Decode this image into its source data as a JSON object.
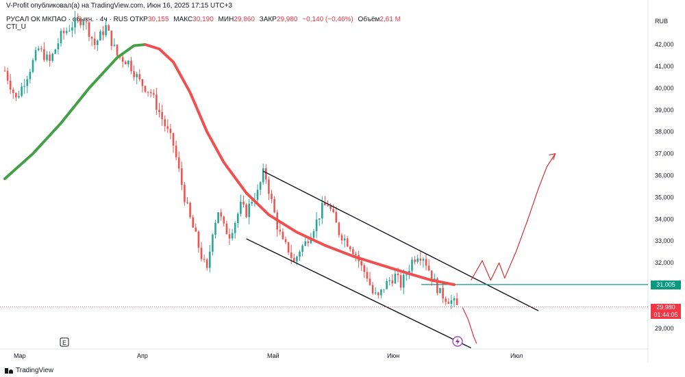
{
  "header": {
    "publisher_line": "V-Profit опубликовал(а) на TradingView.com, Июн 16, 2025 17:15 UTC+3",
    "symbol": "РУСАЛ ОК МКПАО · обыкн. · 4ч · RUS",
    "open_label": "ОТКР",
    "open_value": "30,155",
    "high_label": "МАКС",
    "high_value": "30,190",
    "low_label": "МИН",
    "low_value": "29,860",
    "close_label": "ЗАКР",
    "close_value": "29,980",
    "change": "−0,140 (−0,46%)",
    "volume_label": "Объём",
    "volume_value": "2,61 М",
    "indicator": "CTI_U",
    "currency": "RUB"
  },
  "footer": {
    "brand": "TradingView",
    "e_marker": "E"
  },
  "colors": {
    "up": "#26a69a",
    "down": "#ef5350",
    "indicator_up": "#43a047",
    "indicator_down": "#ef4f4f",
    "level": "#089981",
    "projection": "#d32f2f",
    "price_badge": "#f23645"
  },
  "chart_data": {
    "type": "candlestick",
    "x_ticks": [
      "Мар",
      "Апр",
      "Май",
      "Июн",
      "Июл"
    ],
    "y_ticks": [
      "42,000",
      "41,000",
      "40,000",
      "39,000",
      "38,000",
      "37,000",
      "36,000",
      "35,000",
      "34,000",
      "33,000",
      "32,000",
      "31,000",
      "29,000"
    ],
    "ylim": [
      28.5,
      43.5
    ],
    "price_path": [
      [
        0,
        40.8
      ],
      [
        4,
        39.5
      ],
      [
        8,
        40.6
      ],
      [
        12,
        41.8
      ],
      [
        16,
        41.2
      ],
      [
        20,
        42.4
      ],
      [
        24,
        42.9
      ],
      [
        28,
        43.2
      ],
      [
        32,
        42.0
      ],
      [
        36,
        42.8
      ],
      [
        40,
        41.5
      ],
      [
        44,
        41.2
      ],
      [
        48,
        40.3
      ],
      [
        52,
        39.8
      ],
      [
        56,
        38.6
      ],
      [
        60,
        37.4
      ],
      [
        62,
        36.2
      ],
      [
        64,
        35.0
      ],
      [
        66,
        34.0
      ],
      [
        68,
        33.2
      ],
      [
        70,
        32.3
      ],
      [
        72,
        31.6
      ],
      [
        74,
        33.5
      ],
      [
        76,
        34.4
      ],
      [
        78,
        33.6
      ],
      [
        80,
        33.3
      ],
      [
        82,
        33.9
      ],
      [
        84,
        34.6
      ],
      [
        86,
        34.3
      ],
      [
        88,
        34.9
      ],
      [
        90,
        35.2
      ],
      [
        92,
        36.1
      ],
      [
        93,
        35.9
      ],
      [
        95,
        34.8
      ],
      [
        97,
        33.7
      ],
      [
        99,
        32.9
      ],
      [
        101,
        32.6
      ],
      [
        103,
        32.0
      ],
      [
        105,
        32.6
      ],
      [
        107,
        32.9
      ],
      [
        109,
        33.4
      ],
      [
        111,
        33.9
      ],
      [
        113,
        34.5
      ],
      [
        115,
        34.7
      ],
      [
        117,
        34.1
      ],
      [
        119,
        33.4
      ],
      [
        121,
        33.1
      ],
      [
        123,
        32.8
      ],
      [
        125,
        32.4
      ],
      [
        127,
        31.8
      ],
      [
        129,
        31.4
      ],
      [
        131,
        30.6
      ],
      [
        133,
        30.4
      ],
      [
        135,
        30.9
      ],
      [
        137,
        31.2
      ],
      [
        139,
        31.4
      ],
      [
        141,
        31.0
      ],
      [
        143,
        31.5
      ],
      [
        145,
        32.1
      ],
      [
        147,
        32.4
      ],
      [
        149,
        32.3
      ],
      [
        151,
        31.7
      ],
      [
        153,
        31.1
      ],
      [
        155,
        30.6
      ],
      [
        157,
        30.4
      ],
      [
        159,
        30.25
      ],
      [
        160,
        30.15
      ],
      [
        161,
        29.98
      ]
    ],
    "indicator_cti": [
      [
        0,
        35.85
      ],
      [
        10,
        37.0
      ],
      [
        20,
        38.4
      ],
      [
        30,
        40.0
      ],
      [
        40,
        41.4
      ],
      [
        46,
        41.95
      ],
      [
        50,
        42.0
      ],
      [
        55,
        41.8
      ],
      [
        60,
        41.2
      ],
      [
        66,
        39.8
      ],
      [
        72,
        38.0
      ],
      [
        78,
        36.6
      ],
      [
        86,
        35.2
      ],
      [
        94,
        34.2
      ],
      [
        104,
        33.4
      ],
      [
        114,
        32.8
      ],
      [
        124,
        32.3
      ],
      [
        134,
        31.9
      ],
      [
        144,
        31.5
      ],
      [
        152,
        31.2
      ],
      [
        160,
        31.0
      ]
    ],
    "channel_upper": [
      [
        92,
        36.2
      ],
      [
        190,
        29.8
      ]
    ],
    "channel_lower": [
      [
        86,
        33.1
      ],
      [
        166,
        28.1
      ]
    ],
    "resistance_level": 31.005,
    "resistance_label": "31,005",
    "last_price": 29.98,
    "last_price_label": "29,980",
    "countdown_label": "01:44:05",
    "projection": [
      [
        166,
        31.2
      ],
      [
        170,
        32.1
      ],
      [
        173,
        31.2
      ],
      [
        176,
        32.0
      ],
      [
        178,
        31.3
      ],
      [
        182,
        32.5
      ],
      [
        186,
        33.9
      ],
      [
        190,
        35.4
      ],
      [
        193,
        36.4
      ],
      [
        196,
        37.0
      ]
    ],
    "projection_down": [
      [
        163,
        29.95
      ],
      [
        165,
        29.4
      ],
      [
        167,
        28.6
      ],
      [
        168,
        28.3
      ]
    ]
  }
}
